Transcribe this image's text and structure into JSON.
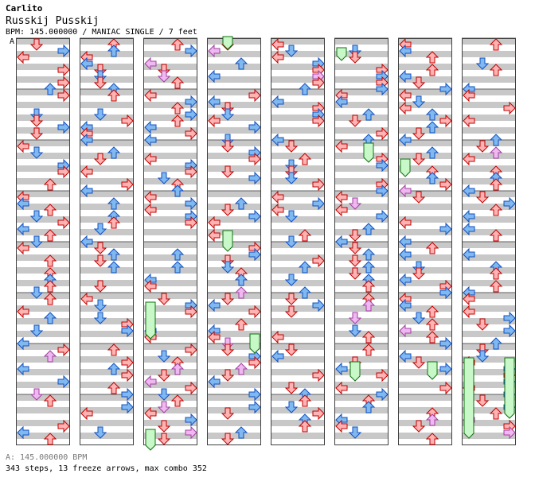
{
  "header": {
    "author": "Carlito",
    "song_title": "Russkij Pusskij",
    "info": "BPM: 145.000000 / MANIAC SINGLE / 7 feet"
  },
  "chart": {
    "section_marker": "A",
    "columns": 8,
    "measures_per_column": 8,
    "lanes": [
      "left",
      "down",
      "up",
      "right"
    ],
    "colors": {
      "quarter_arrow": "#ffb3b3",
      "quarter_border": "#c00000",
      "eighth_arrow": "#80b8f0",
      "eighth_border": "#1050c0",
      "sixteenth_arrow": "#f0b8f0",
      "sixteenth_border": "#a040a0",
      "freeze": "#c8f8c8",
      "freeze_border": "#107010",
      "stripe": "#c8c8c8"
    }
  },
  "footer": {
    "bpm_line": "A: 145.000000 BPM",
    "stats_line": "343 steps, 13 freeze arrows, max combo 352"
  }
}
